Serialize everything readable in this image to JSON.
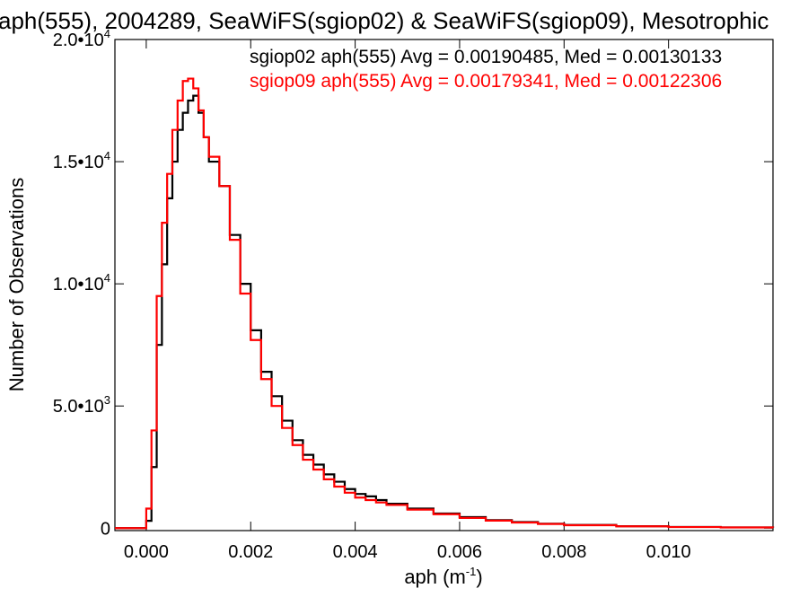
{
  "chart_data": {
    "type": "line",
    "title": "aph(555), 2004289, SeaWiFS(sgiop02) & SeaWiFS(sgiop09), Mesotrophic",
    "xlabel": "aph (m",
    "xlabel_sup": "-1",
    "xlabel_tail": ")",
    "ylabel": "Number of Observations",
    "xlim": [
      -0.0006,
      0.012
    ],
    "ylim": [
      -100,
      20000
    ],
    "xticks": [
      {
        "value": 0.0,
        "label": "0.000"
      },
      {
        "value": 0.002,
        "label": "0.002"
      },
      {
        "value": 0.004,
        "label": "0.004"
      },
      {
        "value": 0.006,
        "label": "0.006"
      },
      {
        "value": 0.008,
        "label": "0.008"
      },
      {
        "value": 0.01,
        "label": "0.010"
      }
    ],
    "yticks": [
      {
        "value": 0,
        "mant": "0",
        "exp": ""
      },
      {
        "value": 5000,
        "mant": "5.0•10",
        "exp": "3"
      },
      {
        "value": 10000,
        "mant": "1.0•10",
        "exp": "4"
      },
      {
        "value": 15000,
        "mant": "1.5•10",
        "exp": "4"
      },
      {
        "value": 20000,
        "mant": "2.0•10",
        "exp": "4"
      }
    ],
    "grid": false,
    "legend_placement": "top-right",
    "series": [
      {
        "name": "sgiop02 aph(555) Avg = 0.00190485, Med = 0.00130133",
        "color": "#000000",
        "x": [
          0.0,
          0.0001,
          0.0002,
          0.0003,
          0.0004,
          0.0005,
          0.0006,
          0.0007,
          0.0008,
          0.0009,
          0.001,
          0.0011,
          0.0012,
          0.0014,
          0.0016,
          0.0018,
          0.002,
          0.0022,
          0.0024,
          0.0026,
          0.0028,
          0.003,
          0.0032,
          0.0034,
          0.0036,
          0.0038,
          0.004,
          0.0042,
          0.0044,
          0.0046,
          0.005,
          0.0055,
          0.006,
          0.0065,
          0.007,
          0.0075,
          0.008,
          0.009,
          0.01,
          0.011,
          0.012
        ],
        "y": [
          300,
          2500,
          7500,
          10800,
          13500,
          15000,
          16300,
          17000,
          17500,
          17700,
          17000,
          16000,
          15000,
          14000,
          12000,
          10000,
          8100,
          6400,
          5400,
          4400,
          3600,
          3000,
          2600,
          2200,
          1900,
          1600,
          1400,
          1300,
          1150,
          1000,
          800,
          600,
          450,
          330,
          250,
          180,
          130,
          80,
          50,
          30,
          20
        ]
      },
      {
        "name": "sgiop09 aph(555) Avg = 0.00179341, Med = 0.00122306",
        "color": "#ff0000",
        "x": [
          0.0,
          0.0001,
          0.0002,
          0.0003,
          0.0004,
          0.0005,
          0.0006,
          0.0007,
          0.0008,
          0.0009,
          0.001,
          0.0011,
          0.0012,
          0.0014,
          0.0016,
          0.0018,
          0.002,
          0.0022,
          0.0024,
          0.0026,
          0.0028,
          0.003,
          0.0032,
          0.0034,
          0.0036,
          0.0038,
          0.004,
          0.0042,
          0.0044,
          0.0046,
          0.005,
          0.0055,
          0.006,
          0.0065,
          0.007,
          0.0075,
          0.008,
          0.009,
          0.01,
          0.011,
          0.012
        ],
        "y": [
          800,
          4000,
          9500,
          12500,
          14500,
          16300,
          17500,
          18300,
          18400,
          18000,
          17100,
          16000,
          15200,
          14000,
          11800,
          9600,
          7700,
          6100,
          5000,
          4100,
          3400,
          2800,
          2400,
          2000,
          1700,
          1450,
          1250,
          1150,
          1050,
          950,
          760,
          570,
          420,
          310,
          230,
          170,
          120,
          75,
          45,
          28,
          18
        ]
      }
    ]
  }
}
